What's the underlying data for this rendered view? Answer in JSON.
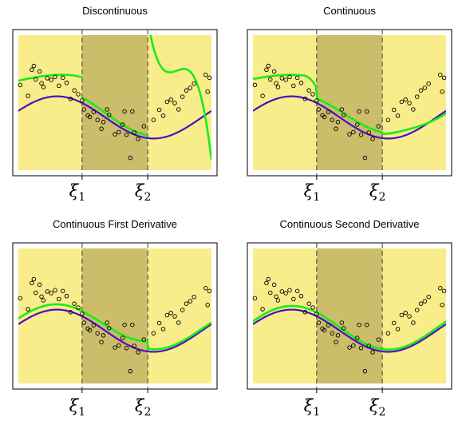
{
  "chart_data": [
    {
      "type": "scatter",
      "title": "Discontinuous",
      "knot_labels": [
        "ξ1",
        "ξ2"
      ],
      "knots": [
        0.33,
        0.67
      ],
      "xlim": [
        0,
        1
      ],
      "ylim": [
        -1.6,
        1.6
      ],
      "colors": {
        "background": "#f9ec8a",
        "middle_region": "#cbbd6a",
        "true_curve": "#4a0fc2",
        "fit": "#18ec18"
      },
      "fit_type": "discontinuous"
    },
    {
      "type": "scatter",
      "title": "Continuous",
      "knot_labels": [
        "ξ1",
        "ξ2"
      ],
      "knots": [
        0.33,
        0.67
      ],
      "xlim": [
        0,
        1
      ],
      "ylim": [
        -1.6,
        1.6
      ],
      "colors": {
        "background": "#f9ec8a",
        "middle_region": "#cbbd6a",
        "true_curve": "#4a0fc2",
        "fit": "#18ec18"
      },
      "fit_type": "continuous"
    },
    {
      "type": "scatter",
      "title": "Continuous First Derivative",
      "knot_labels": [
        "ξ1",
        "ξ2"
      ],
      "knots": [
        0.33,
        0.67
      ],
      "xlim": [
        0,
        1
      ],
      "ylim": [
        -1.6,
        1.6
      ],
      "colors": {
        "background": "#f9ec8a",
        "middle_region": "#cbbd6a",
        "true_curve": "#4a0fc2",
        "fit": "#18ec18"
      },
      "fit_type": "first_derivative"
    },
    {
      "type": "scatter",
      "title": "Continuous Second Derivative",
      "knot_labels": [
        "ξ1",
        "ξ2"
      ],
      "knots": [
        0.33,
        0.67
      ],
      "xlim": [
        0,
        1
      ],
      "ylim": [
        -1.6,
        1.6
      ],
      "colors": {
        "background": "#f9ec8a",
        "middle_region": "#cbbd6a",
        "true_curve": "#4a0fc2",
        "fit": "#18ec18"
      },
      "fit_type": "second_derivative"
    }
  ],
  "points": [
    [
      0.01,
      0.42
    ],
    [
      0.05,
      0.16
    ],
    [
      0.07,
      0.78
    ],
    [
      0.08,
      0.87
    ],
    [
      0.09,
      0.55
    ],
    [
      0.11,
      0.74
    ],
    [
      0.12,
      0.46
    ],
    [
      0.13,
      0.37
    ],
    [
      0.15,
      0.58
    ],
    [
      0.17,
      0.54
    ],
    [
      0.19,
      0.61
    ],
    [
      0.21,
      0.4
    ],
    [
      0.23,
      0.59
    ],
    [
      0.25,
      0.47
    ],
    [
      0.27,
      0.09
    ],
    [
      0.29,
      0.29
    ],
    [
      0.31,
      0.2
    ],
    [
      0.33,
      0.05
    ],
    [
      0.34,
      -0.16
    ],
    [
      0.36,
      -0.3
    ],
    [
      0.37,
      -0.34
    ],
    [
      0.39,
      -0.22
    ],
    [
      0.41,
      -0.41
    ],
    [
      0.43,
      -0.62
    ],
    [
      0.44,
      -0.46
    ],
    [
      0.46,
      -0.16
    ],
    [
      0.47,
      -0.29
    ],
    [
      0.5,
      -0.75
    ],
    [
      0.52,
      -0.7
    ],
    [
      0.54,
      -0.52
    ],
    [
      0.55,
      -0.21
    ],
    [
      0.56,
      -0.76
    ],
    [
      0.58,
      -1.31
    ],
    [
      0.59,
      -0.21
    ],
    [
      0.6,
      -0.71
    ],
    [
      0.62,
      -0.86
    ],
    [
      0.65,
      -0.56
    ],
    [
      0.7,
      -0.41
    ],
    [
      0.73,
      -0.17
    ],
    [
      0.75,
      -0.31
    ],
    [
      0.77,
      0.02
    ],
    [
      0.79,
      0.07
    ],
    [
      0.81,
      -0.01
    ],
    [
      0.83,
      -0.16
    ],
    [
      0.85,
      0.14
    ],
    [
      0.87,
      0.29
    ],
    [
      0.89,
      0.35
    ],
    [
      0.91,
      0.45
    ],
    [
      0.97,
      0.66
    ],
    [
      0.99,
      0.59
    ],
    [
      0.98,
      0.26
    ]
  ]
}
